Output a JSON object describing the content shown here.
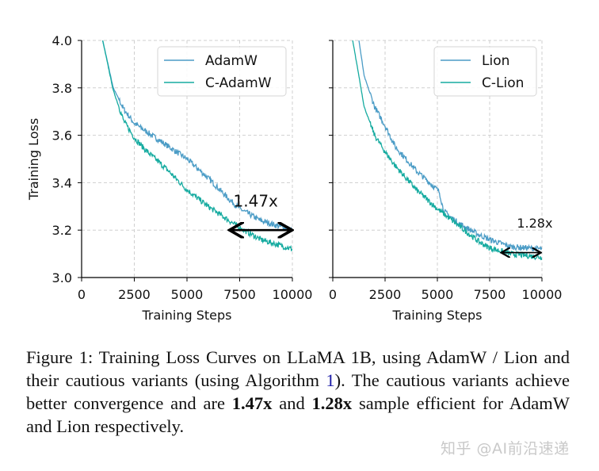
{
  "chart_data": [
    {
      "type": "line",
      "xlabel": "Training Steps",
      "ylabel": "Training Loss",
      "xlim": [
        0,
        10000
      ],
      "ylim": [
        3.0,
        4.0
      ],
      "xticks": [
        "0",
        "2500",
        "5000",
        "7500",
        "10000"
      ],
      "yticks": [
        "3.0",
        "3.2",
        "3.4",
        "3.6",
        "3.8",
        "4.0"
      ],
      "grid": true,
      "legend_position": "top-right",
      "series": [
        {
          "name": "AdamW",
          "color": "#4b9cc6",
          "x": [
            1000,
            1500,
            2000,
            2500,
            3000,
            4000,
            5000,
            6000,
            7000,
            7500,
            8500,
            10000
          ],
          "y": [
            4.0,
            3.8,
            3.71,
            3.65,
            3.62,
            3.56,
            3.5,
            3.42,
            3.33,
            3.29,
            3.24,
            3.2
          ]
        },
        {
          "name": "C-AdamW",
          "color": "#16aba0",
          "x": [
            1000,
            1500,
            2000,
            2500,
            3000,
            4000,
            5000,
            6000,
            7000,
            7500,
            8500,
            10000
          ],
          "y": [
            4.0,
            3.79,
            3.66,
            3.59,
            3.54,
            3.46,
            3.37,
            3.3,
            3.24,
            3.21,
            3.16,
            3.12
          ]
        }
      ],
      "annotation": {
        "text": "1.47x",
        "arrow_x": [
          7000,
          10000
        ],
        "arrow_y": 3.2,
        "text_x": 7200,
        "text_y": 3.3
      }
    },
    {
      "type": "line",
      "xlabel": "Training Steps",
      "ylabel": "",
      "xlim": [
        0,
        10000
      ],
      "ylim": [
        3.0,
        4.0
      ],
      "xticks": [
        "0",
        "2500",
        "5000",
        "7500",
        "10000"
      ],
      "yticks": [],
      "grid": true,
      "legend_position": "top-right",
      "series": [
        {
          "name": "Lion",
          "color": "#4b9cc6",
          "x": [
            1250,
            1500,
            2000,
            2500,
            3000,
            4000,
            5000,
            5100,
            5300,
            6000,
            7000,
            7500,
            8500,
            10000
          ],
          "y": [
            4.0,
            3.85,
            3.72,
            3.64,
            3.55,
            3.45,
            3.37,
            3.36,
            3.28,
            3.23,
            3.18,
            3.16,
            3.13,
            3.12
          ]
        },
        {
          "name": "C-Lion",
          "color": "#16aba0",
          "x": [
            950,
            1250,
            1500,
            2000,
            2500,
            3000,
            4000,
            5000,
            6000,
            7000,
            7500,
            8500,
            10000
          ],
          "y": [
            4.0,
            3.85,
            3.72,
            3.6,
            3.53,
            3.47,
            3.37,
            3.29,
            3.22,
            3.15,
            3.125,
            3.1,
            3.085
          ]
        }
      ],
      "annotation": {
        "text": "1.28x",
        "arrow_x": [
          8000,
          10000
        ],
        "arrow_y": 3.105,
        "text_x": 8800,
        "text_y": 3.21
      }
    }
  ],
  "caption": {
    "part1": "Figure 1: Training Loss Curves on LLaMA 1B, using AdamW / Lion and their cautious variants (using Algorithm ",
    "ref": "1",
    "part2": "). The cautious variants achieve better convergence and are ",
    "bold1": "1.47x",
    "part3": " and ",
    "bold2": "1.28x",
    "part4": " sample efficient for AdamW and Lion respectively."
  },
  "watermark": "知乎 @AI前沿速递"
}
